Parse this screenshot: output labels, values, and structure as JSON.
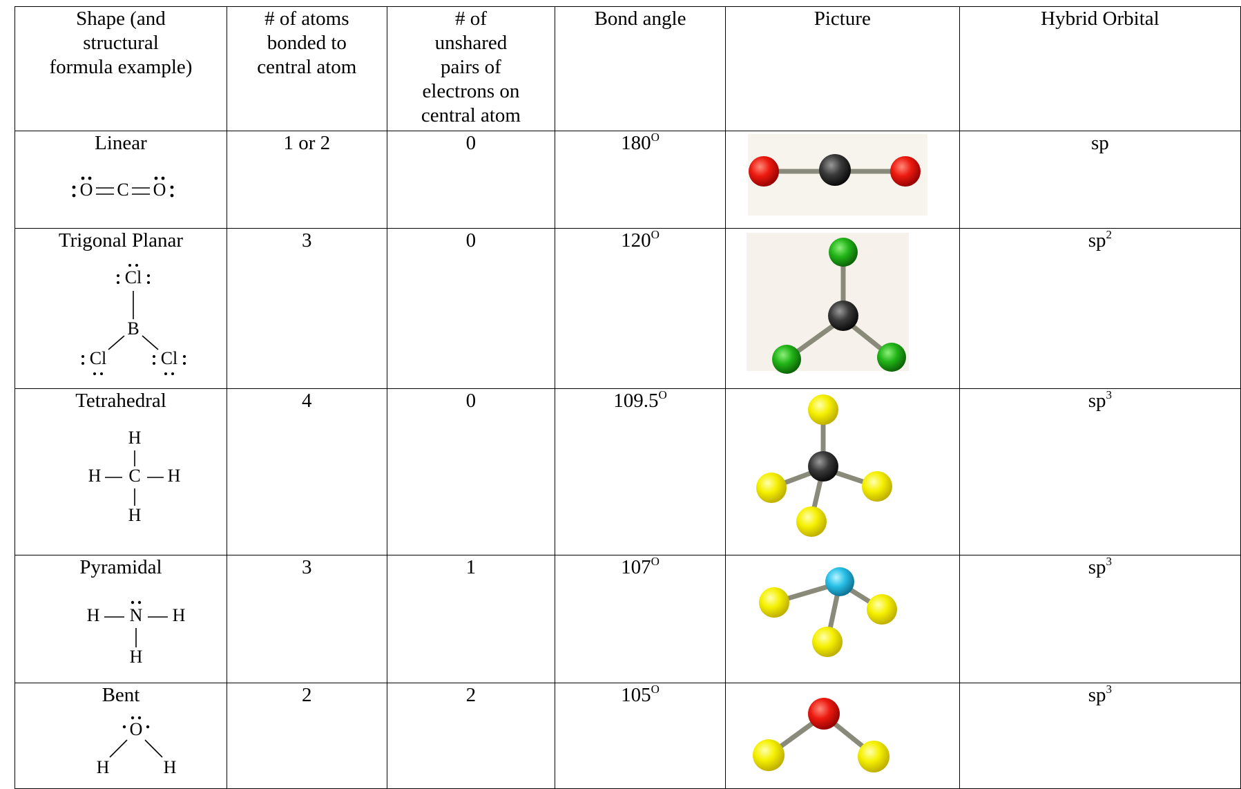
{
  "table": {
    "headers": [
      [
        "Shape (and",
        "structural",
        "formula example)"
      ],
      [
        "# of atoms",
        "bonded to",
        "central atom"
      ],
      [
        "# of",
        "unshared",
        "pairs of",
        "electrons on",
        "central atom"
      ],
      [
        "Bond angle"
      ],
      [
        "Picture"
      ],
      [
        "Hybrid Orbital"
      ]
    ],
    "rows": [
      {
        "shape": "Linear",
        "formula": [
          "O",
          "C",
          "O"
        ],
        "atoms": "1 or 2",
        "unshared": "0",
        "angle": "180",
        "angle_sup": "O",
        "hybrid": "sp"
      },
      {
        "shape": "Trigonal Planar",
        "formula": [
          "Cl",
          "B",
          "Cl",
          "Cl"
        ],
        "atoms": "3",
        "unshared": "0",
        "angle": "120",
        "angle_sup": "O",
        "hybrid": "sp",
        "hybrid_sup": "2"
      },
      {
        "shape": "Tetrahedral",
        "formula": [
          "H",
          "H",
          "C",
          "H",
          "H"
        ],
        "atoms": "4",
        "unshared": "0",
        "angle": "109.5",
        "angle_sup": "O",
        "hybrid": "sp",
        "hybrid_sup": "3"
      },
      {
        "shape": "Pyramidal",
        "formula": [
          "H",
          "N",
          "H",
          "H"
        ],
        "atoms": "3",
        "unshared": "1",
        "angle": "107",
        "angle_sup": "O",
        "hybrid": "sp",
        "hybrid_sup": "3"
      },
      {
        "shape": "Bent",
        "formula": [
          "O",
          "H",
          "H"
        ],
        "atoms": "2",
        "unshared": "2",
        "angle": "105",
        "angle_sup": "O",
        "hybrid": "sp",
        "hybrid_sup": "3"
      }
    ]
  }
}
